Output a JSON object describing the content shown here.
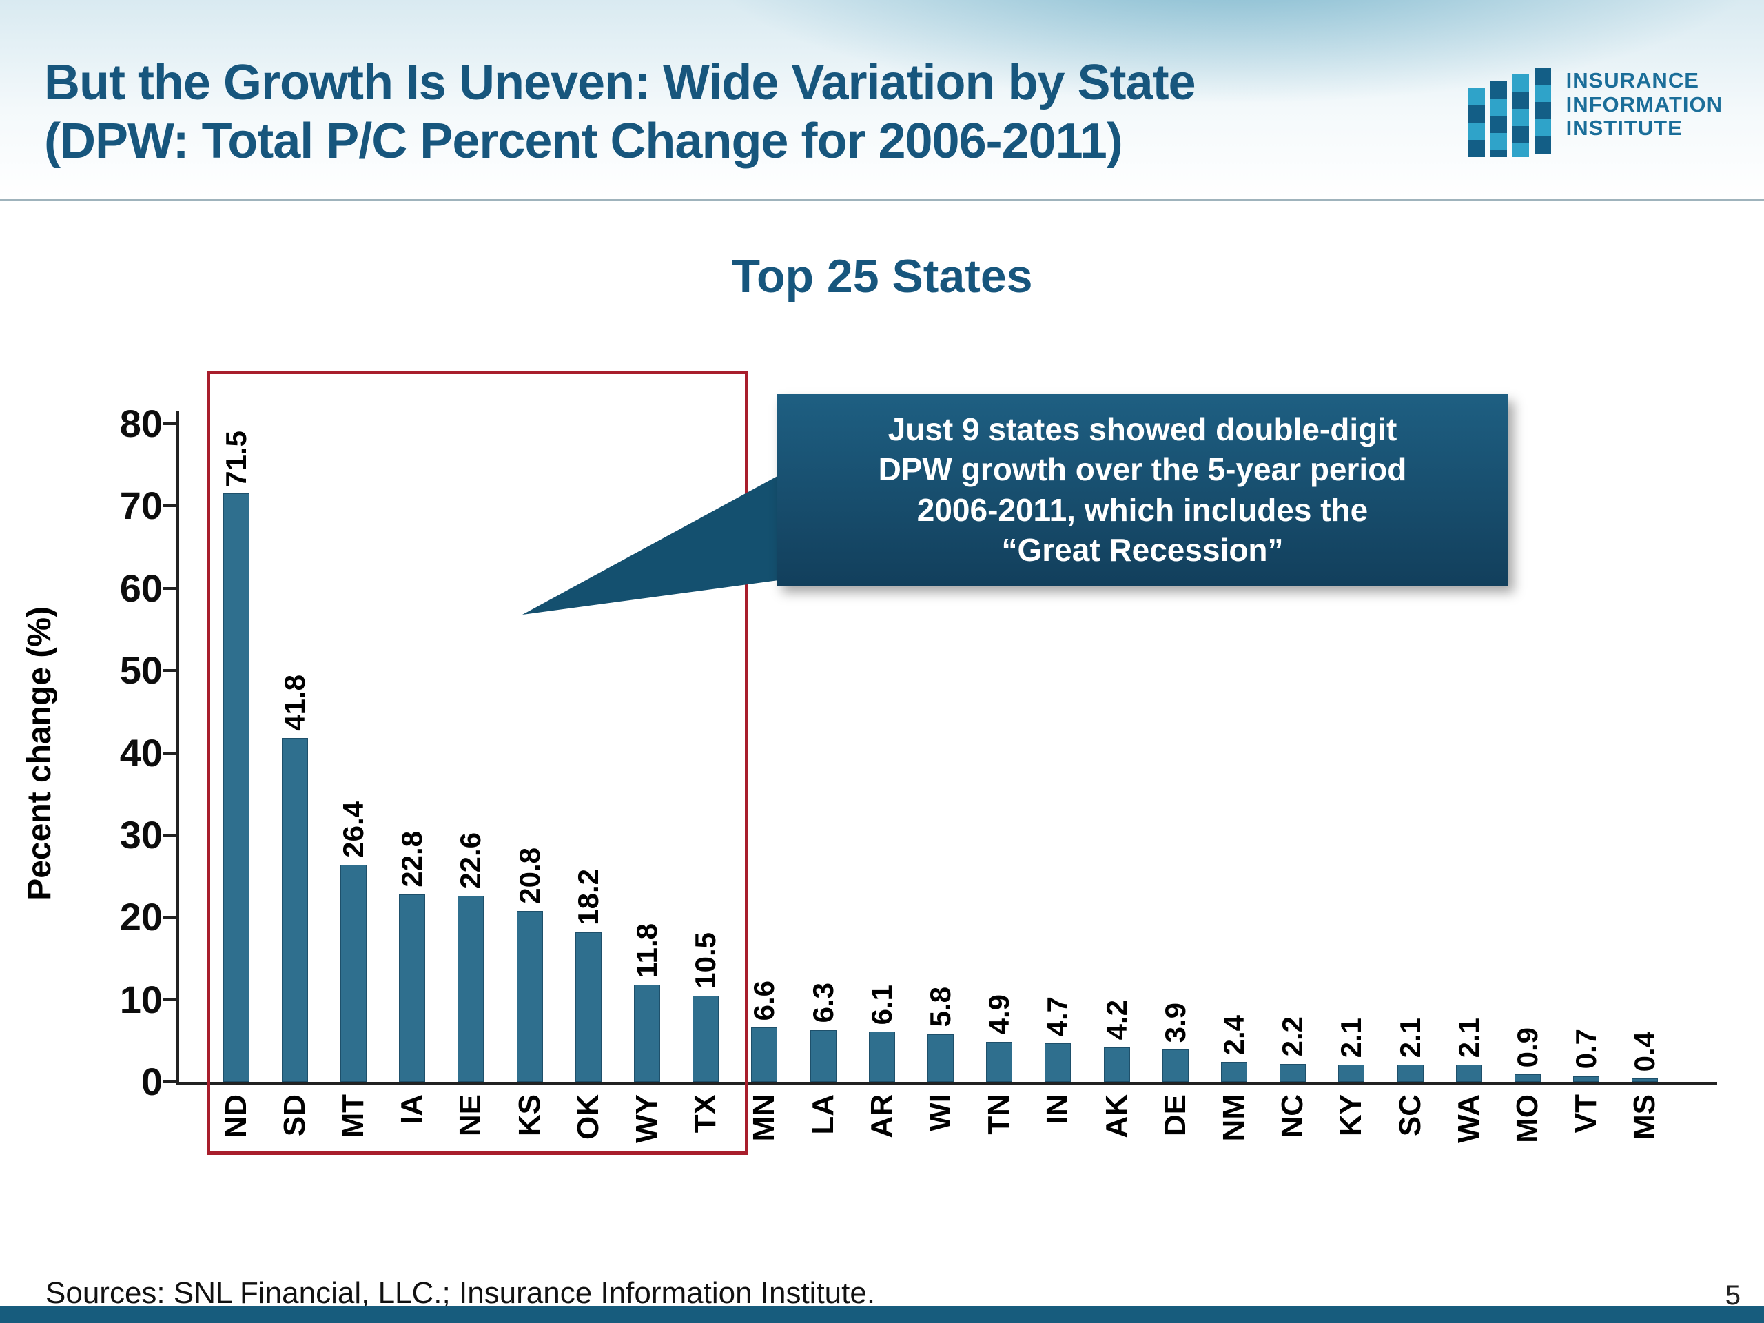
{
  "header": {
    "title_line1": "But the Growth Is Uneven: Wide Variation by State",
    "title_line2": "(DPW: Total P/C Percent Change for 2006-2011)",
    "logo": {
      "line1": "INSURANCE",
      "line2": "INFORMATION",
      "line3": "INSTITUTE"
    }
  },
  "chart_data": {
    "type": "bar",
    "title": "Top 25 States",
    "xlabel": "",
    "ylabel": "Pecent change (%)",
    "ylim": [
      0,
      80
    ],
    "yticks": [
      0,
      10,
      20,
      30,
      40,
      50,
      60,
      70,
      80
    ],
    "grid": "off",
    "categories": [
      "ND",
      "SD",
      "MT",
      "IA",
      "NE",
      "KS",
      "OK",
      "WY",
      "TX",
      "MN",
      "LA",
      "AR",
      "WI",
      "TN",
      "IN",
      "AK",
      "DE",
      "NM",
      "NC",
      "KY",
      "SC",
      "WA",
      "MO",
      "VT",
      "MS"
    ],
    "values": [
      71.5,
      41.8,
      26.4,
      22.8,
      22.6,
      20.8,
      18.2,
      11.8,
      10.5,
      6.6,
      6.3,
      6.1,
      5.8,
      4.9,
      4.7,
      4.2,
      3.9,
      2.4,
      2.2,
      2.1,
      2.1,
      2.1,
      0.9,
      0.7,
      0.4
    ],
    "bar_color": "#2f6f8e",
    "highlight": {
      "from_category": "ND",
      "to_category": "TX",
      "box_color": "#a81e2c",
      "meaning": "9 states with double-digit growth"
    },
    "annotation": "Just 9 states showed double-digit DPW growth over the 5-year period 2006-2011, which includes the “Great Recession”"
  },
  "callout": {
    "lines": [
      "Just 9 states showed double-digit",
      "DPW growth over the 5-year period",
      "2006-2011, which includes the",
      "“Great Recession”"
    ]
  },
  "footer": {
    "sources": "Sources:  SNL Financial, LLC.; Insurance Information Institute.",
    "page_number": "5"
  }
}
